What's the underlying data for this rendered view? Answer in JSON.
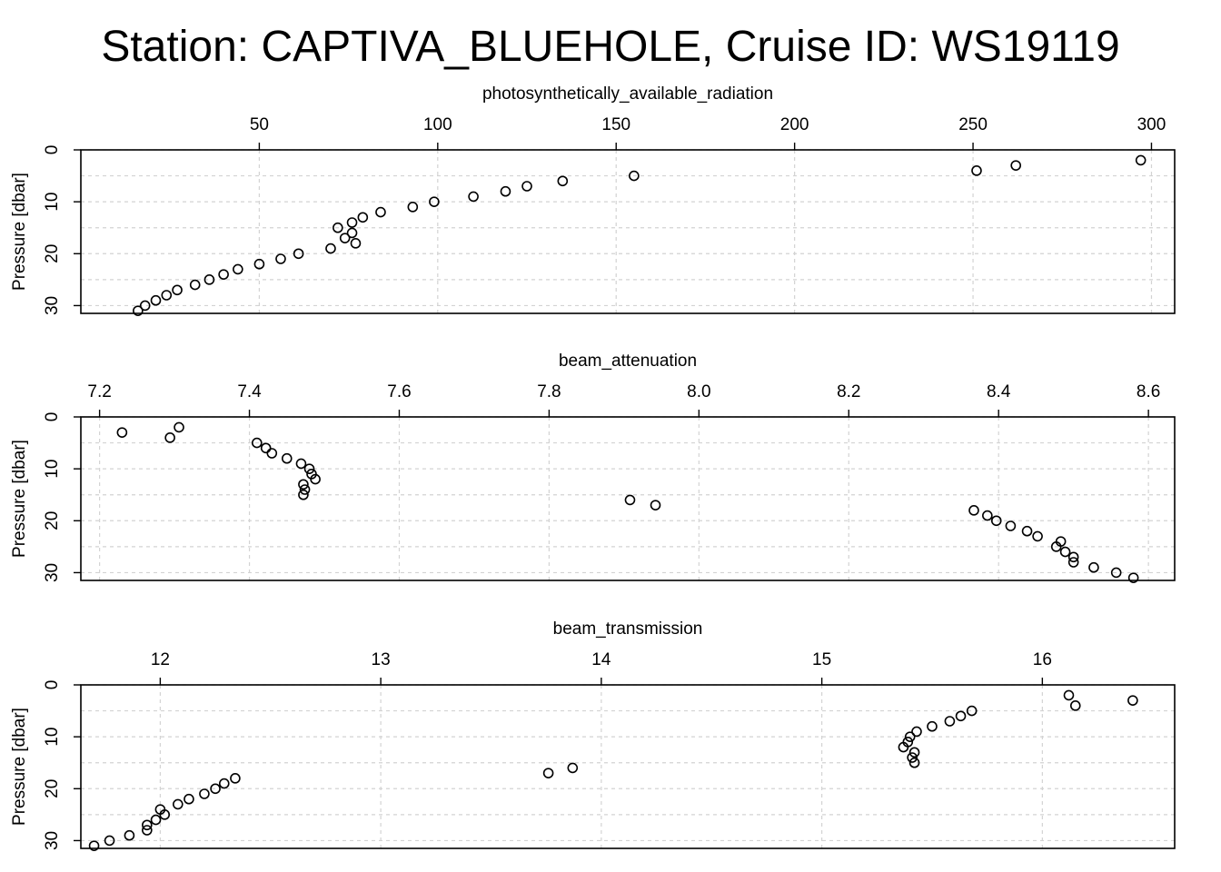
{
  "title": "Station: CAPTIVA_BLUEHOLE, Cruise ID: WS19119",
  "chart_data": [
    {
      "type": "scatter",
      "xlabel": "photosynthetically_available_radiation",
      "ylabel": "Pressure [dbar]",
      "xlim": [
        0,
        306.5
      ],
      "ylim": [
        31.5,
        0
      ],
      "xticks": [
        50,
        100,
        150,
        200,
        250,
        300
      ],
      "yticks": [
        0,
        10,
        20,
        30
      ],
      "x_axis_position": "top",
      "y_reversed": true,
      "grid": true,
      "points": [
        [
          297,
          2
        ],
        [
          262,
          3
        ],
        [
          251,
          4
        ],
        [
          155,
          5
        ],
        [
          135,
          6
        ],
        [
          125,
          7
        ],
        [
          119,
          8
        ],
        [
          110,
          9
        ],
        [
          99,
          10
        ],
        [
          93,
          11
        ],
        [
          84,
          12
        ],
        [
          79,
          13
        ],
        [
          76,
          14
        ],
        [
          72,
          15
        ],
        [
          76,
          16
        ],
        [
          74,
          17
        ],
        [
          77,
          18
        ],
        [
          70,
          19
        ],
        [
          61,
          20
        ],
        [
          56,
          21
        ],
        [
          50,
          22
        ],
        [
          44,
          23
        ],
        [
          40,
          24
        ],
        [
          36,
          25
        ],
        [
          32,
          26
        ],
        [
          27,
          27
        ],
        [
          24,
          28
        ],
        [
          21,
          29
        ],
        [
          18,
          30
        ],
        [
          16,
          31
        ]
      ]
    },
    {
      "type": "scatter",
      "xlabel": "beam_attenuation",
      "ylabel": "Pressure [dbar]",
      "xlim": [
        7.175,
        8.635
      ],
      "ylim": [
        31.5,
        0
      ],
      "xticks": [
        "7.2",
        "7.4",
        "7.6",
        "7.8",
        "8.0",
        "8.2",
        "8.4",
        "8.6"
      ],
      "yticks": [
        0,
        10,
        20,
        30
      ],
      "x_axis_position": "top",
      "y_reversed": true,
      "grid": true,
      "points": [
        [
          7.306,
          2
        ],
        [
          7.23,
          3
        ],
        [
          7.294,
          4
        ],
        [
          7.41,
          5
        ],
        [
          7.422,
          6
        ],
        [
          7.43,
          7
        ],
        [
          7.45,
          8
        ],
        [
          7.469,
          9
        ],
        [
          7.48,
          10
        ],
        [
          7.483,
          11
        ],
        [
          7.488,
          12
        ],
        [
          7.472,
          13
        ],
        [
          7.474,
          14
        ],
        [
          7.472,
          15
        ],
        [
          7.908,
          16
        ],
        [
          7.942,
          17
        ],
        [
          8.367,
          18
        ],
        [
          8.385,
          19
        ],
        [
          8.397,
          20
        ],
        [
          8.416,
          21
        ],
        [
          8.438,
          22
        ],
        [
          8.452,
          23
        ],
        [
          8.483,
          24
        ],
        [
          8.477,
          25
        ],
        [
          8.489,
          26
        ],
        [
          8.5,
          27
        ],
        [
          8.5,
          28
        ],
        [
          8.527,
          29
        ],
        [
          8.557,
          30
        ],
        [
          8.58,
          31
        ]
      ]
    },
    {
      "type": "scatter",
      "xlabel": "beam_transmission",
      "ylabel": "Pressure [dbar]",
      "xlim": [
        11.64,
        16.6
      ],
      "ylim": [
        31.5,
        0
      ],
      "xticks": [
        12,
        13,
        14,
        15,
        16
      ],
      "yticks": [
        0,
        10,
        20,
        30
      ],
      "x_axis_position": "top",
      "y_reversed": true,
      "grid": true,
      "points": [
        [
          16.12,
          2
        ],
        [
          16.41,
          3
        ],
        [
          16.15,
          4
        ],
        [
          15.68,
          5
        ],
        [
          15.63,
          6
        ],
        [
          15.58,
          7
        ],
        [
          15.5,
          8
        ],
        [
          15.43,
          9
        ],
        [
          15.4,
          10
        ],
        [
          15.39,
          11
        ],
        [
          15.37,
          12
        ],
        [
          15.42,
          13
        ],
        [
          15.41,
          14
        ],
        [
          15.42,
          15
        ],
        [
          13.87,
          16
        ],
        [
          13.76,
          17
        ],
        [
          12.34,
          18
        ],
        [
          12.29,
          19
        ],
        [
          12.25,
          20
        ],
        [
          12.2,
          21
        ],
        [
          12.13,
          22
        ],
        [
          12.08,
          23
        ],
        [
          12.0,
          24
        ],
        [
          12.02,
          25
        ],
        [
          11.98,
          26
        ],
        [
          11.94,
          27
        ],
        [
          11.94,
          28
        ],
        [
          11.86,
          29
        ],
        [
          11.77,
          30
        ],
        [
          11.7,
          31
        ]
      ]
    }
  ]
}
